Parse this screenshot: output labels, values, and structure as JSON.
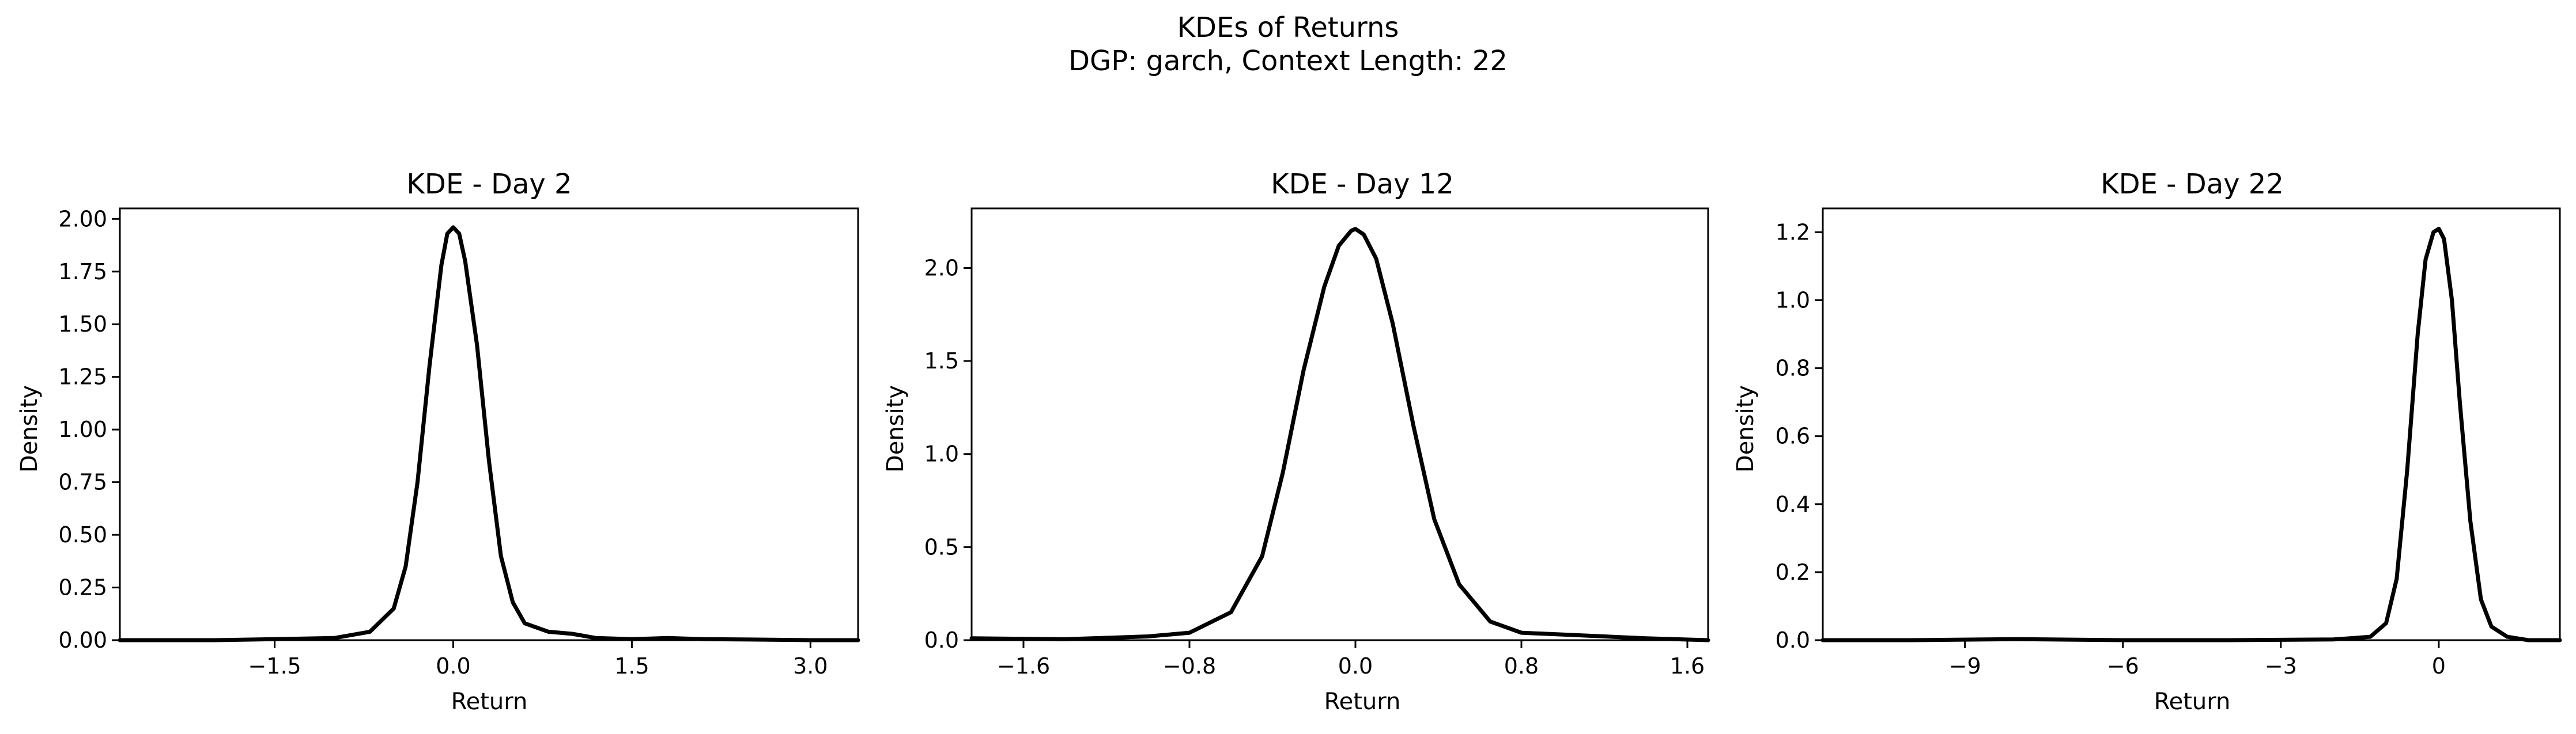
{
  "figure": {
    "title_line1": "KDEs of Returns",
    "title_line2": "DGP: garch, Context Length: 22"
  },
  "chart_data": [
    {
      "type": "line",
      "title": "KDE - Day 2",
      "xlabel": "Return",
      "ylabel": "Density",
      "xlim": [
        -2.8,
        3.4
      ],
      "ylim": [
        0,
        2.05
      ],
      "xticks": [
        -1.5,
        0.0,
        1.5,
        3.0
      ],
      "xtick_labels": [
        "−1.5",
        "0.0",
        "1.5",
        "3.0"
      ],
      "yticks": [
        0,
        0.25,
        0.5,
        0.75,
        1.0,
        1.25,
        1.5,
        1.75,
        2.0
      ],
      "ytick_labels": [
        "0.00",
        "0.25",
        "0.50",
        "0.75",
        "1.00",
        "1.25",
        "1.50",
        "1.75",
        "2.00"
      ],
      "series": [
        {
          "x": [
            -2.8,
            -2.0,
            -1.5,
            -1.0,
            -0.7,
            -0.5,
            -0.4,
            -0.3,
            -0.2,
            -0.1,
            -0.05,
            0.0,
            0.05,
            0.1,
            0.2,
            0.3,
            0.4,
            0.5,
            0.6,
            0.8,
            1.0,
            1.2,
            1.5,
            1.8,
            2.1,
            2.5,
            3.0,
            3.4
          ],
          "y": [
            0.0,
            0.0,
            0.005,
            0.01,
            0.04,
            0.15,
            0.35,
            0.75,
            1.3,
            1.78,
            1.93,
            1.96,
            1.93,
            1.8,
            1.4,
            0.85,
            0.4,
            0.18,
            0.08,
            0.04,
            0.03,
            0.01,
            0.005,
            0.01,
            0.005,
            0.003,
            0.0,
            0.0
          ]
        }
      ]
    },
    {
      "type": "line",
      "title": "KDE - Day 12",
      "xlabel": "Return",
      "ylabel": "Density",
      "xlim": [
        -1.85,
        1.7
      ],
      "ylim": [
        0,
        2.32
      ],
      "xticks": [
        -1.6,
        -0.8,
        0.0,
        0.8,
        1.6
      ],
      "xtick_labels": [
        "−1.6",
        "−0.8",
        "0.0",
        "0.8",
        "1.6"
      ],
      "yticks": [
        0,
        0.5,
        1.0,
        1.5,
        2.0
      ],
      "ytick_labels": [
        "0.0",
        "0.5",
        "1.0",
        "1.5",
        "2.0"
      ],
      "series": [
        {
          "x": [
            -1.85,
            -1.4,
            -1.0,
            -0.8,
            -0.6,
            -0.45,
            -0.35,
            -0.25,
            -0.15,
            -0.08,
            -0.02,
            0.0,
            0.04,
            0.1,
            0.18,
            0.28,
            0.38,
            0.5,
            0.65,
            0.8,
            1.0,
            1.2,
            1.4,
            1.7
          ],
          "y": [
            0.01,
            0.005,
            0.02,
            0.04,
            0.15,
            0.45,
            0.9,
            1.45,
            1.9,
            2.12,
            2.2,
            2.21,
            2.18,
            2.05,
            1.7,
            1.15,
            0.65,
            0.3,
            0.1,
            0.04,
            0.03,
            0.02,
            0.01,
            0.0
          ]
        }
      ]
    },
    {
      "type": "line",
      "title": "KDE - Day 22",
      "xlabel": "Return",
      "ylabel": "Density",
      "xlim": [
        -11.7,
        2.3
      ],
      "ylim": [
        0,
        1.27
      ],
      "xticks": [
        -9,
        -6,
        -3,
        0
      ],
      "xtick_labels": [
        "−9",
        "−6",
        "−3",
        "0"
      ],
      "yticks": [
        0,
        0.2,
        0.4,
        0.6,
        0.8,
        1.0,
        1.2
      ],
      "ytick_labels": [
        "0.0",
        "0.2",
        "0.4",
        "0.6",
        "0.8",
        "1.0",
        "1.2"
      ],
      "series": [
        {
          "x": [
            -11.7,
            -10.0,
            -8.0,
            -6.0,
            -4.0,
            -2.0,
            -1.3,
            -1.0,
            -0.8,
            -0.6,
            -0.4,
            -0.25,
            -0.1,
            0.0,
            0.1,
            0.25,
            0.4,
            0.6,
            0.8,
            1.0,
            1.3,
            1.7,
            2.3
          ],
          "y": [
            0.0,
            0.0,
            0.003,
            0.0,
            0.0,
            0.002,
            0.01,
            0.05,
            0.18,
            0.5,
            0.9,
            1.12,
            1.2,
            1.21,
            1.18,
            1.0,
            0.7,
            0.35,
            0.12,
            0.04,
            0.01,
            0.0,
            0.0
          ]
        }
      ]
    }
  ]
}
